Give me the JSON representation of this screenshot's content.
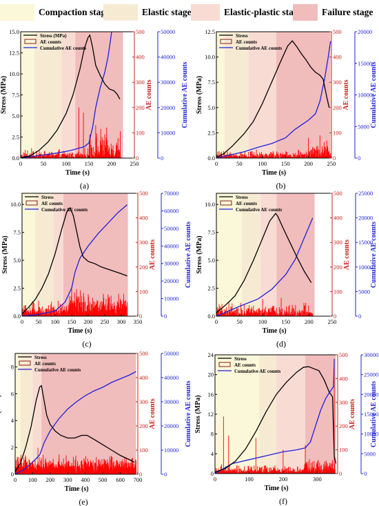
{
  "stage_legend": [
    {
      "label": "Compaction stage",
      "color": "#fbf7d9"
    },
    {
      "label": "Elastic stage",
      "color": "#f7ead3"
    },
    {
      "label": "Elastic-plastic stage",
      "color": "#f8dcd4"
    },
    {
      "label": "Failure stage",
      "color": "#f1bcbc"
    }
  ],
  "colors": {
    "stress": "#000000",
    "ae": "#ff0000",
    "cumulative": "#1f1fdc",
    "stress_axis": "#000000",
    "ae_axis": "#c8201a",
    "cumulative_axis": "#1f1fdc"
  },
  "chart_data": [
    {
      "panel": "(a)",
      "type": "line",
      "legend": [
        "Stress (MPa)",
        "AE counts",
        "Cumulative AE counts"
      ],
      "xlabel": "Time (s)",
      "ylabel_stress": "Stress (MPa)",
      "ylabel_ae": "AE counts",
      "ylabel_cum": "Cumulative AE counts",
      "xlim": [
        0,
        250
      ],
      "xticks": [
        0,
        50,
        100,
        150,
        200,
        250
      ],
      "ylim_stress": [
        0,
        15
      ],
      "yticks_stress": [
        "0.0",
        "2.5",
        "5.0",
        "7.5",
        "10.0",
        "12.5",
        "15.0"
      ],
      "ylim_ae": [
        0,
        500
      ],
      "yticks_ae": [
        0,
        100,
        200,
        300,
        400,
        500
      ],
      "ylim_cum": [
        0,
        50000
      ],
      "yticks_cum": [
        0,
        10000,
        20000,
        30000,
        40000,
        50000
      ],
      "stages": [
        0,
        30,
        90,
        120,
        225
      ],
      "stress": [
        [
          0,
          0.05
        ],
        [
          20,
          0.25
        ],
        [
          40,
          0.9
        ],
        [
          60,
          1.9
        ],
        [
          80,
          3.3
        ],
        [
          100,
          5.3
        ],
        [
          115,
          7.5
        ],
        [
          130,
          10.5
        ],
        [
          140,
          13.0
        ],
        [
          148,
          14.3
        ],
        [
          152,
          14.6
        ],
        [
          158,
          13.2
        ],
        [
          165,
          11.0
        ],
        [
          175,
          9.8
        ],
        [
          185,
          8.8
        ],
        [
          195,
          8.2
        ],
        [
          205,
          8.0
        ],
        [
          212,
          7.6
        ],
        [
          218,
          7.0
        ]
      ],
      "cum": [
        [
          0,
          0
        ],
        [
          40,
          1000
        ],
        [
          80,
          2000
        ],
        [
          110,
          3000
        ],
        [
          140,
          4500
        ],
        [
          150,
          6000
        ],
        [
          158,
          12000
        ],
        [
          165,
          20000
        ],
        [
          175,
          28000
        ],
        [
          185,
          34000
        ],
        [
          192,
          40000
        ],
        [
          197,
          46000
        ],
        [
          200,
          50000
        ]
      ],
      "ae": {
        "tmax": 220,
        "base": 15,
        "noise": 25,
        "burst_start": 150,
        "burst_amp": 85,
        "spikes": [
          [
            128,
            200
          ],
          [
            138,
            180
          ],
          [
            165,
            130
          ]
        ]
      }
    },
    {
      "panel": "(b)",
      "type": "line",
      "legend": [
        "Stress",
        "AE counts",
        "Cumulative AE counts"
      ],
      "xlabel": "Time (s)",
      "ylabel_stress": "Stress (MPa)",
      "ylabel_ae": "AE counts",
      "ylabel_cum": "Cumulative AE counts",
      "xlim": [
        0,
        250
      ],
      "xticks": [
        0,
        50,
        100,
        150,
        200,
        250
      ],
      "ylim_stress": [
        0,
        12.5
      ],
      "yticks_stress": [
        "0.0",
        "2.5",
        "5.0",
        "7.5",
        "10.0",
        "12.5"
      ],
      "ylim_ae": [
        0,
        500
      ],
      "yticks_ae": [
        0,
        100,
        200,
        300,
        400,
        500
      ],
      "ylim_cum": [
        0,
        20000
      ],
      "yticks_cum": [
        0,
        5000,
        10000,
        15000,
        20000
      ],
      "stages": [
        0,
        18,
        70,
        130,
        248
      ],
      "stress": [
        [
          0,
          0.1
        ],
        [
          15,
          0.4
        ],
        [
          35,
          1.2
        ],
        [
          60,
          2.4
        ],
        [
          80,
          3.6
        ],
        [
          100,
          5.4
        ],
        [
          120,
          7.5
        ],
        [
          140,
          9.6
        ],
        [
          155,
          11.1
        ],
        [
          165,
          11.6
        ],
        [
          175,
          11.0
        ],
        [
          185,
          10.3
        ],
        [
          195,
          9.7
        ],
        [
          205,
          9.0
        ],
        [
          215,
          8.5
        ],
        [
          225,
          8.2
        ],
        [
          232,
          7.8
        ],
        [
          240,
          6.0
        ],
        [
          245,
          5.0
        ]
      ],
      "cum": [
        [
          0,
          0
        ],
        [
          30,
          500
        ],
        [
          60,
          1000
        ],
        [
          90,
          1700
        ],
        [
          120,
          2300
        ],
        [
          150,
          3200
        ],
        [
          170,
          4500
        ],
        [
          200,
          6000
        ],
        [
          215,
          7000
        ],
        [
          225,
          9000
        ],
        [
          235,
          12500
        ],
        [
          243,
          16000
        ],
        [
          248,
          18500
        ]
      ],
      "ae": {
        "tmax": 248,
        "base": 15,
        "noise": 20,
        "burst_start": 200,
        "burst_amp": 40,
        "spikes": [
          [
            200,
            80
          ],
          [
            225,
            90
          ],
          [
            240,
            70
          ]
        ]
      }
    },
    {
      "panel": "(c)",
      "type": "line",
      "legend": [
        "Stress",
        "AE counts",
        "Cumulative AE counts"
      ],
      "xlabel": "Time (s)",
      "ylabel_stress": "Stress (MPa)",
      "ylabel_ae": "AE counts",
      "ylabel_cum": "Cumulative AE counts",
      "xlim": [
        0,
        350
      ],
      "xticks": [
        0,
        50,
        100,
        150,
        200,
        250,
        300,
        350
      ],
      "ylim_stress": [
        0,
        11
      ],
      "yticks_stress": [
        "0.0",
        "2.5",
        "5.0",
        "7.5",
        "10.0"
      ],
      "ylim_ae": [
        0,
        500
      ],
      "yticks_ae": [
        0,
        100,
        200,
        300,
        400,
        500
      ],
      "ylim_cum": [
        0,
        70000
      ],
      "yticks_cum": [
        0,
        10000,
        20000,
        30000,
        40000,
        50000,
        60000,
        70000
      ],
      "stages": [
        0,
        40,
        95,
        125,
        320
      ],
      "stress": [
        [
          0,
          0.2
        ],
        [
          20,
          0.8
        ],
        [
          40,
          1.5
        ],
        [
          60,
          2.5
        ],
        [
          80,
          3.8
        ],
        [
          100,
          5.6
        ],
        [
          120,
          7.8
        ],
        [
          135,
          9.3
        ],
        [
          145,
          9.7
        ],
        [
          155,
          9.0
        ],
        [
          165,
          7.6
        ],
        [
          175,
          6.2
        ],
        [
          185,
          5.3
        ],
        [
          200,
          4.9
        ],
        [
          220,
          4.7
        ],
        [
          240,
          4.4
        ],
        [
          260,
          4.2
        ],
        [
          280,
          4.0
        ],
        [
          300,
          3.8
        ],
        [
          318,
          3.6
        ]
      ],
      "cum": [
        [
          0,
          0
        ],
        [
          50,
          1000
        ],
        [
          100,
          3000
        ],
        [
          130,
          8000
        ],
        [
          150,
          16000
        ],
        [
          160,
          25000
        ],
        [
          175,
          33000
        ],
        [
          200,
          40000
        ],
        [
          230,
          47000
        ],
        [
          260,
          53000
        ],
        [
          290,
          59000
        ],
        [
          318,
          63500
        ]
      ],
      "ae": {
        "tmax": 318,
        "base": 25,
        "noise": 45,
        "burst_start": 140,
        "burst_amp": 50,
        "spikes": [
          [
            150,
            120
          ],
          [
            165,
            110
          ],
          [
            200,
            90
          ]
        ]
      }
    },
    {
      "panel": "(d)",
      "type": "line",
      "legend": [
        "Stress",
        "AE counts",
        "Cumulative AE counts"
      ],
      "xlabel": "Time (s)",
      "ylabel_stress": "Stress (MPa)",
      "ylabel_ae": "AE counts",
      "ylabel_cum": "Cumulative AE counts",
      "xlim": [
        0,
        250
      ],
      "xticks": [
        0,
        50,
        100,
        150,
        200,
        250
      ],
      "ylim_stress": [
        0,
        11
      ],
      "yticks_stress": [
        "0.0",
        "2.5",
        "5.0",
        "7.5",
        "10.0"
      ],
      "ylim_ae": [
        0,
        500
      ],
      "yticks_ae": [
        0,
        100,
        200,
        300,
        400,
        500
      ],
      "ylim_cum": [
        0,
        25000
      ],
      "yticks_cum": [
        0,
        5000,
        10000,
        15000,
        20000,
        25000
      ],
      "stages": [
        0,
        55,
        95,
        130,
        212
      ],
      "stress": [
        [
          0,
          0.3
        ],
        [
          20,
          1.0
        ],
        [
          40,
          1.8
        ],
        [
          60,
          3.2
        ],
        [
          80,
          5.0
        ],
        [
          100,
          7.0
        ],
        [
          115,
          8.5
        ],
        [
          128,
          9.2
        ],
        [
          133,
          8.9
        ],
        [
          145,
          7.8
        ],
        [
          160,
          6.5
        ],
        [
          175,
          5.2
        ],
        [
          190,
          4.0
        ],
        [
          205,
          3.0
        ]
      ],
      "cum": [
        [
          0,
          0
        ],
        [
          50,
          2000
        ],
        [
          90,
          3500
        ],
        [
          120,
          5500
        ],
        [
          150,
          8500
        ],
        [
          170,
          11500
        ],
        [
          190,
          16000
        ],
        [
          208,
          20000
        ]
      ],
      "ae": {
        "tmax": 208,
        "base": 20,
        "noise": 40,
        "burst_start": 300,
        "burst_amp": 0,
        "spikes": [
          [
            100,
            70
          ],
          [
            140,
            75
          ]
        ]
      }
    },
    {
      "panel": "(e)",
      "type": "line",
      "legend": [
        "Stress",
        "AE  counts",
        "Cumulative AE counts"
      ],
      "xlabel": "Time (s)",
      "ylabel_stress": "Stress (MPa)",
      "ylabel_ae": "AE counts",
      "ylabel_cum": "Cumulative AE counts",
      "xlim": [
        0,
        700
      ],
      "xticks": [
        0,
        100,
        200,
        300,
        400,
        500,
        600,
        700
      ],
      "ylim_stress": [
        0,
        9
      ],
      "yticks_stress": [
        "0",
        "2",
        "4",
        "6",
        "8"
      ],
      "ylim_ae": [
        0,
        500
      ],
      "yticks_ae": [
        0,
        100,
        200,
        300,
        400,
        500
      ],
      "ylim_cum": [
        0,
        50000
      ],
      "yticks_cum": [
        0,
        10000,
        20000,
        30000,
        40000,
        50000
      ],
      "stages": [
        0,
        30,
        100,
        150,
        690
      ],
      "stress": [
        [
          0,
          0.2
        ],
        [
          30,
          0.8
        ],
        [
          60,
          2.0
        ],
        [
          90,
          3.5
        ],
        [
          120,
          5.5
        ],
        [
          140,
          6.5
        ],
        [
          150,
          6.6
        ],
        [
          165,
          5.5
        ],
        [
          180,
          4.4
        ],
        [
          200,
          3.7
        ],
        [
          230,
          3.2
        ],
        [
          260,
          2.9
        ],
        [
          300,
          2.7
        ],
        [
          340,
          2.7
        ],
        [
          380,
          2.9
        ],
        [
          410,
          2.9
        ],
        [
          450,
          2.6
        ],
        [
          500,
          2.2
        ],
        [
          550,
          1.8
        ],
        [
          600,
          1.4
        ],
        [
          650,
          1.1
        ],
        [
          680,
          0.9
        ]
      ],
      "cum": [
        [
          0,
          0
        ],
        [
          50,
          2000
        ],
        [
          100,
          5000
        ],
        [
          140,
          8000
        ],
        [
          165,
          13000
        ],
        [
          200,
          18000
        ],
        [
          250,
          23000
        ],
        [
          300,
          27000
        ],
        [
          350,
          30000
        ],
        [
          400,
          32500
        ],
        [
          450,
          34500
        ],
        [
          500,
          36000
        ],
        [
          550,
          38000
        ],
        [
          600,
          39500
        ],
        [
          650,
          41000
        ],
        [
          690,
          42500
        ]
      ],
      "ae": {
        "tmax": 690,
        "base": 35,
        "noise": 50,
        "burst_start": 900,
        "burst_amp": 0,
        "spikes": [
          [
            130,
            110
          ],
          [
            160,
            80
          ]
        ]
      }
    },
    {
      "panel": "(f)",
      "type": "line",
      "legend": [
        "Stress",
        "AE counts",
        "Cumulative AE counts"
      ],
      "xlabel": "Time (s)",
      "ylabel_stress": "Stress (MPa)",
      "ylabel_ae": "AE counts",
      "ylabel_cum": "Cumulative AE counts",
      "xlim": [
        0,
        360
      ],
      "xticks": [
        0,
        100,
        200,
        300
      ],
      "ylim_stress": [
        0,
        24
      ],
      "yticks_stress": [
        "0",
        "4",
        "8",
        "12",
        "16",
        "20",
        "24"
      ],
      "ylim_ae": [
        0,
        500
      ],
      "yticks_ae": [
        0,
        100,
        200,
        300,
        400,
        500
      ],
      "ylim_cum": [
        0,
        30000
      ],
      "yticks_cum": [
        0,
        5000,
        10000,
        15000,
        20000,
        25000,
        30000
      ],
      "stages": [
        0,
        130,
        180,
        265,
        355
      ],
      "stress": [
        [
          0,
          0.3
        ],
        [
          30,
          1.0
        ],
        [
          60,
          2.5
        ],
        [
          90,
          5.0
        ],
        [
          120,
          8.5
        ],
        [
          150,
          12.5
        ],
        [
          180,
          16.0
        ],
        [
          210,
          18.5
        ],
        [
          240,
          20.5
        ],
        [
          260,
          21.5
        ],
        [
          275,
          21.6
        ],
        [
          290,
          21.2
        ],
        [
          305,
          20.8
        ],
        [
          320,
          19.0
        ],
        [
          335,
          16.5
        ],
        [
          345,
          15.5
        ],
        [
          350,
          3.5
        ],
        [
          355,
          2.0
        ]
      ],
      "cum": [
        [
          0,
          0
        ],
        [
          50,
          2500
        ],
        [
          100,
          3500
        ],
        [
          150,
          4500
        ],
        [
          200,
          5500
        ],
        [
          240,
          6000
        ],
        [
          265,
          6500
        ],
        [
          280,
          8000
        ],
        [
          295,
          12000
        ],
        [
          310,
          16000
        ],
        [
          325,
          19000
        ],
        [
          340,
          21000
        ],
        [
          348,
          22000
        ],
        [
          350,
          29000
        ]
      ],
      "ae": {
        "tmax": 352,
        "base": 15,
        "noise": 25,
        "burst_start": 265,
        "burst_amp": 40,
        "spikes": [
          [
            25,
            240
          ],
          [
            40,
            160
          ],
          [
            120,
            150
          ],
          [
            200,
            100
          ],
          [
            265,
            120
          ],
          [
            350,
            480
          ]
        ]
      }
    }
  ]
}
